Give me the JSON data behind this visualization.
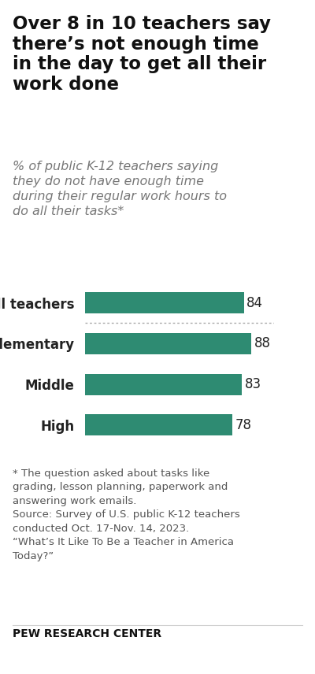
{
  "title": "Over 8 in 10 teachers say\nthere’s not enough time\nin the day to get all their\nwork done",
  "subtitle": "% of public K-12 teachers saying\nthey do not have enough time\nduring their regular work hours to\ndo all their tasks*",
  "categories": [
    "All teachers",
    "Elementary",
    "Middle",
    "High"
  ],
  "values": [
    84,
    88,
    83,
    78
  ],
  "bar_color": "#2e8b72",
  "value_color": "#222222",
  "label_color": "#222222",
  "background_color": "#ffffff",
  "footnote": "* The question asked about tasks like\ngrading, lesson planning, paperwork and\nanswering work emails.\nSource: Survey of U.S. public K-12 teachers\nconducted Oct. 17-Nov. 14, 2023.\n“What’s It Like To Be a Teacher in America\nToday?”",
  "footer": "PEW RESEARCH CENTER",
  "xlim": [
    0,
    100
  ],
  "bar_height": 0.52,
  "title_fontsize": 16.5,
  "subtitle_fontsize": 11.5,
  "label_fontsize": 12,
  "value_fontsize": 12,
  "footnote_fontsize": 9.5,
  "footer_fontsize": 10
}
